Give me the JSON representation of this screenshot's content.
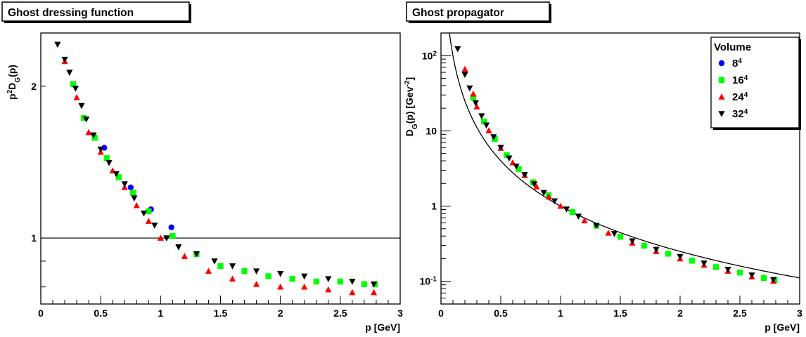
{
  "chart_data": [
    {
      "type": "scatter",
      "title": "Ghost dressing function",
      "xlabel": "p [GeV]",
      "ylabel": "p2DG(p)",
      "ylabel_parts": {
        "base": "p",
        "sup": "2",
        "mid": "D",
        "sub": "G",
        "tail": "(p)"
      },
      "xlim": [
        0,
        3
      ],
      "ylim": [
        0.74,
        2.55
      ],
      "yscale": "log",
      "x_ticks": [
        "0",
        "0.5",
        "1",
        "1.5",
        "2",
        "2.5",
        "3"
      ],
      "y_ticks": [
        "1",
        "2"
      ],
      "reference_line": {
        "y": 1
      },
      "grid": false,
      "series": [
        {
          "id": "v8",
          "marker": "circle",
          "color": "#0000ff",
          "x": [
            0.53,
            0.75,
            0.92,
            1.09
          ],
          "y": [
            1.51,
            1.26,
            1.14,
            1.05
          ]
        },
        {
          "id": "v16",
          "marker": "square",
          "color": "#00ff00",
          "x": [
            0.27,
            0.36,
            0.45,
            0.55,
            0.65,
            0.77,
            0.9,
            1.1,
            1.3,
            1.5,
            1.7,
            1.9,
            2.1,
            2.3,
            2.5,
            2.7,
            2.79
          ],
          "y": [
            2.02,
            1.73,
            1.58,
            1.44,
            1.32,
            1.23,
            1.13,
            1.01,
            0.93,
            0.88,
            0.86,
            0.84,
            0.83,
            0.82,
            0.82,
            0.81,
            0.81
          ]
        },
        {
          "id": "v24",
          "marker": "triangle-up",
          "color": "#ff0000",
          "x": [
            0.2,
            0.3,
            0.4,
            0.5,
            0.6,
            0.7,
            0.8,
            0.9,
            1.0,
            1.2,
            1.4,
            1.6,
            1.8,
            2.0,
            2.2,
            2.4,
            2.6,
            2.78
          ],
          "y": [
            2.24,
            1.9,
            1.62,
            1.48,
            1.36,
            1.26,
            1.16,
            1.08,
            1.0,
            0.92,
            0.86,
            0.83,
            0.81,
            0.8,
            0.8,
            0.79,
            0.78,
            0.78
          ]
        },
        {
          "id": "v32",
          "marker": "triangle-down",
          "color": "#000000",
          "x": [
            0.14,
            0.2,
            0.24,
            0.29,
            0.34,
            0.38,
            0.44,
            0.5,
            0.57,
            0.63,
            0.7,
            0.78,
            0.86,
            0.95,
            1.05,
            1.15,
            1.3,
            1.45,
            1.6,
            1.8,
            2.0,
            2.2,
            2.4,
            2.6,
            2.78
          ],
          "y": [
            2.42,
            2.26,
            2.13,
            1.98,
            1.83,
            1.72,
            1.6,
            1.5,
            1.41,
            1.34,
            1.28,
            1.2,
            1.12,
            1.06,
            1.0,
            0.96,
            0.93,
            0.9,
            0.88,
            0.86,
            0.85,
            0.84,
            0.83,
            0.82,
            0.81
          ]
        }
      ]
    },
    {
      "type": "scatter",
      "title": "Ghost propagator",
      "xlabel": "p [GeV]",
      "ylabel": "DG(p) [Gev-2]",
      "ylabel_parts": {
        "base": "D",
        "sub": "G",
        "mid": "(p) [Gev",
        "sup": "-2",
        "tail": "]"
      },
      "xlim": [
        0,
        3
      ],
      "ylim": [
        0.05,
        200
      ],
      "yscale": "log",
      "y_ticks": [
        {
          "v": 0.1,
          "base": "10",
          "sup": "-1"
        },
        {
          "v": 1,
          "base": "1",
          "sup": ""
        },
        {
          "v": 10,
          "base": "10",
          "sup": ""
        },
        {
          "v": 100,
          "base": "10",
          "sup": "2"
        }
      ],
      "x_ticks": [
        "0",
        "0.5",
        "1",
        "1.5",
        "2",
        "2.5",
        "3"
      ],
      "reference_curve": {
        "formula": "1/p^2"
      },
      "grid": false,
      "legend": {
        "title": "Volume",
        "position": "top-right",
        "entries": [
          {
            "series": "v8",
            "base": "8",
            "sup": "4"
          },
          {
            "series": "v16",
            "base": "16",
            "sup": "4"
          },
          {
            "series": "v24",
            "base": "24",
            "sup": "4"
          },
          {
            "series": "v32",
            "base": "32",
            "sup": "4"
          }
        ]
      },
      "series": [
        {
          "id": "v16",
          "marker": "square",
          "color": "#00ff00",
          "x": [
            0.27,
            0.36,
            0.45,
            0.55,
            0.65,
            0.77,
            0.9,
            1.1,
            1.3,
            1.5,
            1.7,
            1.9,
            2.1,
            2.3,
            2.5,
            2.7,
            2.79
          ],
          "y": [
            27.7,
            13.3,
            7.8,
            4.76,
            3.12,
            2.07,
            1.4,
            0.835,
            0.55,
            0.391,
            0.298,
            0.233,
            0.188,
            0.155,
            0.131,
            0.111,
            0.104
          ]
        },
        {
          "id": "v24",
          "marker": "triangle-up",
          "color": "#ff0000",
          "x": [
            0.2,
            0.27,
            0.3,
            0.4,
            0.5,
            0.6,
            0.7,
            0.8,
            0.9,
            1.0,
            1.2,
            1.4,
            1.6,
            1.8,
            2.0,
            2.2,
            2.4,
            2.6,
            2.78
          ],
          "y": [
            66,
            31,
            21,
            10.1,
            5.9,
            3.78,
            2.57,
            1.81,
            1.33,
            1.0,
            0.64,
            0.44,
            0.324,
            0.25,
            0.2,
            0.165,
            0.137,
            0.115,
            0.101
          ]
        },
        {
          "id": "v32",
          "marker": "triangle-down",
          "color": "#000000",
          "x": [
            0.14,
            0.2,
            0.24,
            0.29,
            0.34,
            0.38,
            0.44,
            0.5,
            0.57,
            0.63,
            0.7,
            0.78,
            0.86,
            0.95,
            1.05,
            1.15,
            1.3,
            1.45,
            1.6,
            1.8,
            2.0,
            2.2,
            2.4,
            2.6,
            2.78
          ],
          "y": [
            123,
            56,
            37,
            23.5,
            15.8,
            11.9,
            8.3,
            6.0,
            4.34,
            3.38,
            2.61,
            1.97,
            1.51,
            1.17,
            0.91,
            0.73,
            0.55,
            0.43,
            0.344,
            0.265,
            0.213,
            0.174,
            0.144,
            0.121,
            0.105
          ]
        }
      ]
    }
  ]
}
